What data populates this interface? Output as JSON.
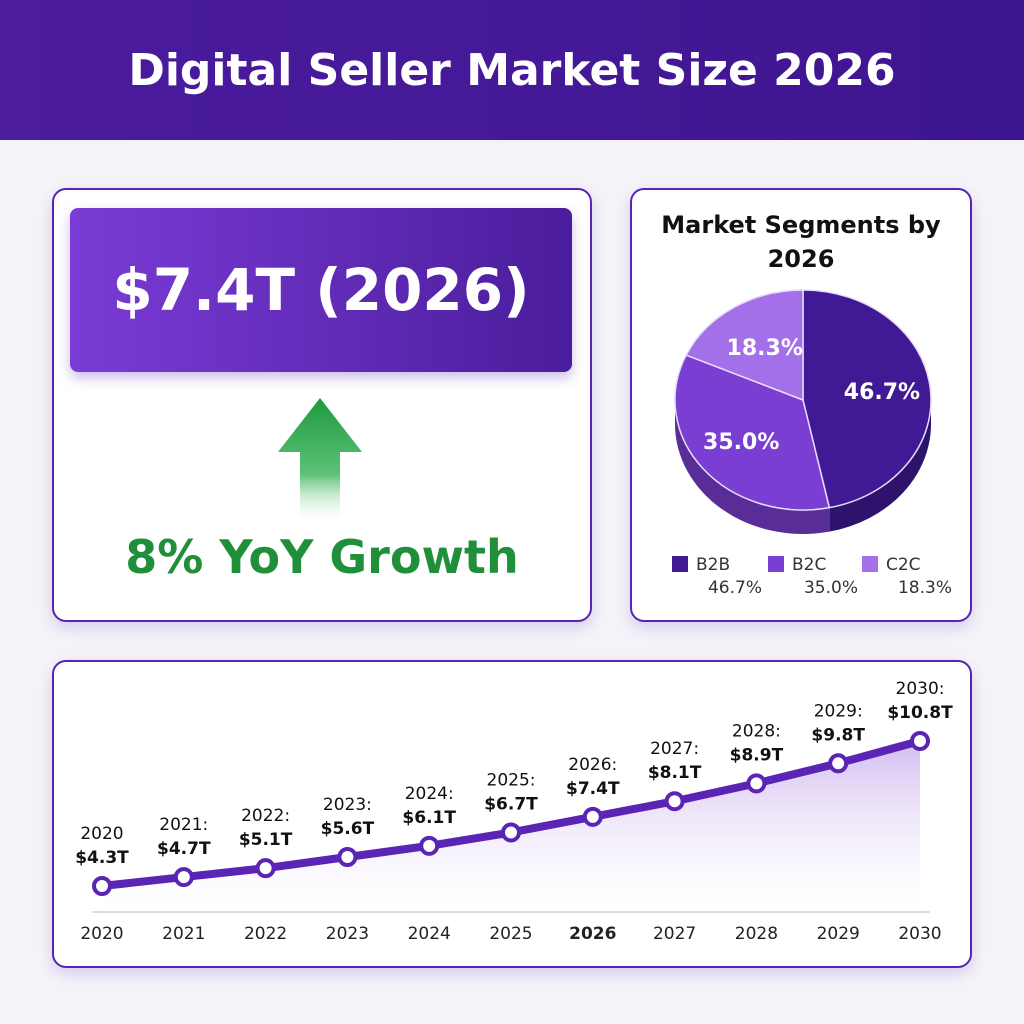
{
  "title": "Digital Seller Market Size 2026",
  "kpi": {
    "value": "$7.4T (2026)",
    "growth": "8% YoY Growth"
  },
  "chart_data": [
    {
      "type": "pie",
      "title": "Market Segments by 2026",
      "categories": [
        "B2B",
        "B2C",
        "C2C"
      ],
      "values": [
        46.7,
        35.0,
        18.3
      ],
      "value_labels": [
        "46.7%",
        "35.0%",
        "18.3%"
      ],
      "colors": [
        "#3f1a94",
        "#7a3fd2",
        "#a370ea"
      ],
      "legend": "bottom"
    },
    {
      "type": "line",
      "color": "#5a24b4",
      "categories": [
        "2020",
        "2021",
        "2022",
        "2023",
        "2024",
        "2025",
        "2026",
        "2027",
        "2028",
        "2029",
        "2030"
      ],
      "point_years": [
        "2020",
        "2021:",
        "2022:",
        "2023:",
        "2024:",
        "2025:",
        "2026:",
        "2027:",
        "2028:",
        "2029:",
        "2030:"
      ],
      "values": [
        4.3,
        4.7,
        5.1,
        5.6,
        6.1,
        6.7,
        7.4,
        8.1,
        8.9,
        9.8,
        10.8
      ],
      "value_labels": [
        "$4.3T",
        "$4.7T",
        "$5.1T",
        "$5.6T",
        "$6.1T",
        "$6.7T",
        "$7.4T",
        "$8.1T",
        "$8.9T",
        "$9.8T",
        "$10.8T"
      ],
      "highlight": "2026"
    }
  ]
}
